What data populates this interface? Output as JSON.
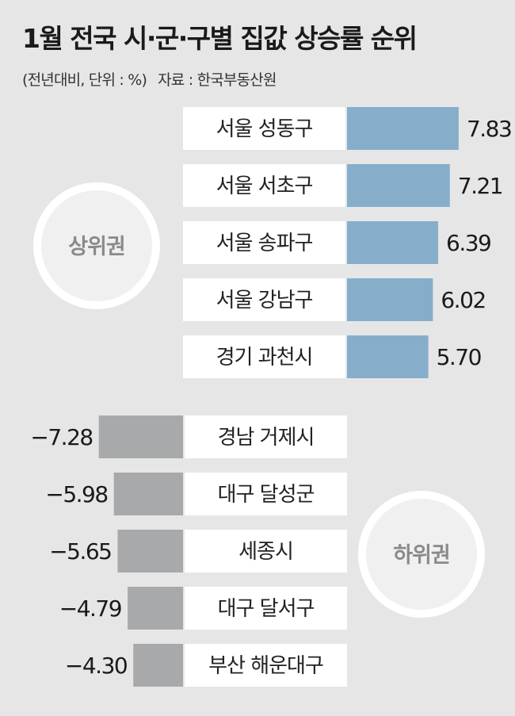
{
  "title": "1월 전국 시·군·구별 집값 상승률 순위",
  "subtitle": "(전년대비, 단위 : %)",
  "source": "자료 : 한국부동산원",
  "colors": {
    "top_bar": "#86aecb",
    "bottom_bar": "#a8a9ab",
    "label_box": "#ffffff",
    "background": "#e6e6e6"
  },
  "chart_data": [
    {
      "type": "bar",
      "group_label": "상위권",
      "categories": [
        "서울 성동구",
        "서울 서초구",
        "서울 송파구",
        "서울 강남구",
        "경기 과천시"
      ],
      "values": [
        7.83,
        7.21,
        6.39,
        6.02,
        5.7
      ],
      "value_labels": [
        "7.83",
        "7.21",
        "6.39",
        "6.02",
        "5.70"
      ],
      "orientation": "horizontal"
    },
    {
      "type": "bar",
      "group_label": "하위권",
      "categories": [
        "경남 거제시",
        "대구 달성군",
        "세종시",
        "대구 달서구",
        "부산 해운대구"
      ],
      "values": [
        -7.28,
        -5.98,
        -5.65,
        -4.79,
        -4.3
      ],
      "value_labels": [
        "−7.28",
        "−5.98",
        "−5.65",
        "−4.79",
        "−4.30"
      ],
      "orientation": "horizontal"
    }
  ]
}
